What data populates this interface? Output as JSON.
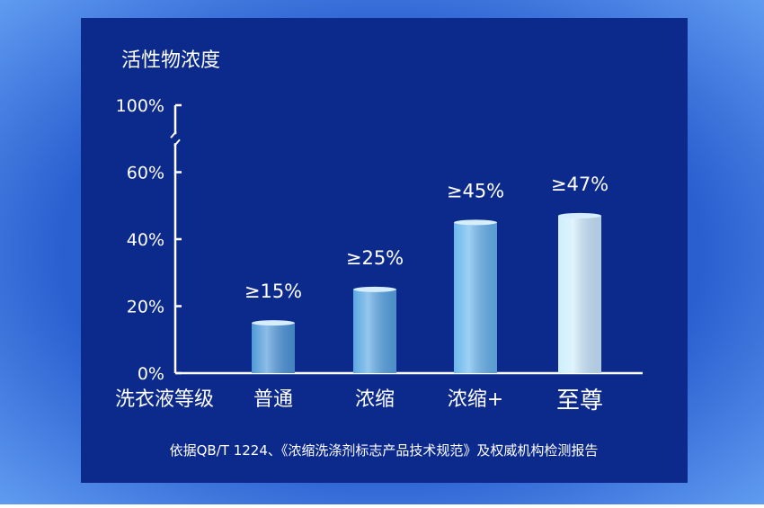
{
  "chart_data": {
    "type": "bar",
    "y_label": "活性物浓度",
    "x_label": "洗衣液等级",
    "categories": [
      "普通",
      "浓缩",
      "浓缩+",
      "至尊"
    ],
    "values": [
      15,
      25,
      45,
      47
    ],
    "value_labels": [
      "≥15%",
      "≥25%",
      "≥45%",
      "≥47%"
    ],
    "colors": [
      "#4f9ad8",
      "#5aa8e2",
      "#6ab8ec",
      "#cfeefc"
    ],
    "ylim": [
      0,
      100
    ],
    "yticks": [
      {
        "value": 0,
        "label": "0%"
      },
      {
        "value": 20,
        "label": "20%"
      },
      {
        "value": 40,
        "label": "40%"
      },
      {
        "value": 60,
        "label": "60%"
      },
      {
        "value": 100,
        "label": "100%"
      }
    ],
    "axis_break": true,
    "footnote": "依据QB/T 1224、《浓缩洗涤剂标志产品技术规范》及权威机构检测报告"
  }
}
